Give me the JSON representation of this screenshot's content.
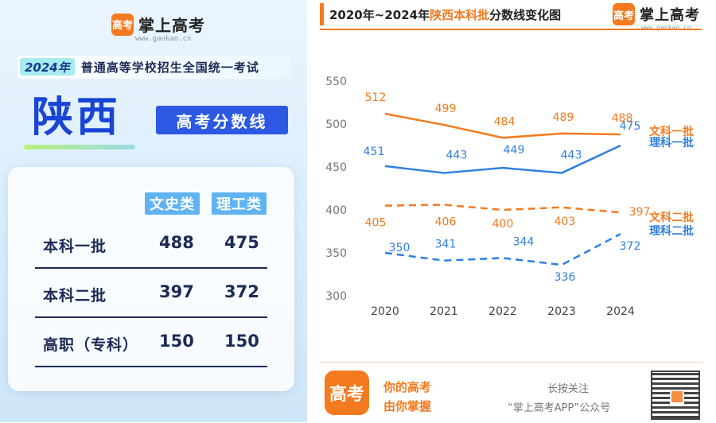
{
  "left": {
    "logo_mark": "高考",
    "logo_text": "掌上高考",
    "logo_url": "www.gaokao.cn",
    "exam_year": "2024年",
    "exam_title": "普通高等学校招生全国统一考试",
    "province": "陕西",
    "score_tag": "高考分数线",
    "table": {
      "col_headers": [
        "文史类",
        "理工类"
      ],
      "rows": [
        {
          "name": "本科一批",
          "v1": "488",
          "v2": "475"
        },
        {
          "name": "本科二批",
          "v1": "397",
          "v2": "372"
        },
        {
          "name": "高职（专科）",
          "v1": "150",
          "v2": "150"
        }
      ]
    }
  },
  "right": {
    "title_prefix": "2020年~2024年",
    "title_highlight": "陕西本科批",
    "title_suffix": "分数线变化图",
    "logo_mark": "高考",
    "logo_text": "掌上高考",
    "logo_url": "www.gaokao.cn"
  },
  "colors": {
    "orange": "#f47a1f",
    "blue": "#2f7fe0",
    "province_blue": "#1844d8"
  },
  "chart_data": {
    "type": "line",
    "x": [
      "2020",
      "2021",
      "2022",
      "2023",
      "2024"
    ],
    "ylim": [
      300,
      550
    ],
    "yticks": [
      "550",
      "500",
      "450",
      "400",
      "350",
      "300"
    ],
    "grid": false,
    "series": [
      {
        "name": "文科一批",
        "values": [
          512,
          499,
          484,
          489,
          488
        ],
        "color": "#f47a1f",
        "dash": false,
        "labels": [
          "512",
          "499",
          "484",
          "489",
          "488"
        ]
      },
      {
        "name": "理科一批",
        "values": [
          451,
          443,
          449,
          443,
          475
        ],
        "color": "#2f7fe0",
        "dash": false,
        "labels": [
          "451",
          "443",
          "449",
          "443",
          "475"
        ]
      },
      {
        "name": "文科二批",
        "values": [
          405,
          406,
          400,
          403,
          397
        ],
        "color": "#f47a1f",
        "dash": true,
        "labels": [
          "405",
          "406",
          "400",
          "403",
          "397"
        ]
      },
      {
        "name": "理科二批",
        "values": [
          350,
          341,
          344,
          336,
          372
        ],
        "color": "#2f7fe0",
        "dash": true,
        "labels": [
          "350",
          "341",
          "344",
          "336",
          "372"
        ]
      }
    ]
  },
  "footer": {
    "logo_mark": "高考",
    "slogan_line1": "你的高考",
    "slogan_line2": "由你掌握",
    "hint_line1": "长按关注",
    "hint_line2": "“掌上高考APP”公众号"
  }
}
